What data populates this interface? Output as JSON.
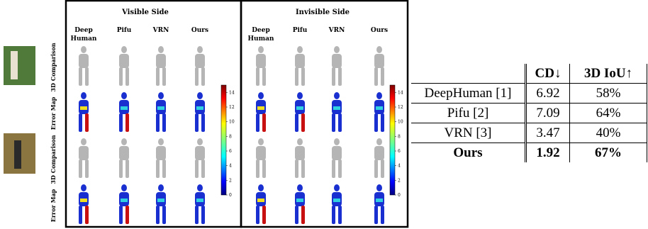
{
  "figure": {
    "panels": [
      {
        "title": "Visible Side",
        "columns": [
          "Deep Human",
          "Pifu",
          "VRN",
          "Ours"
        ]
      },
      {
        "title": "Invisible Side",
        "columns": [
          "Deep Human",
          "Pifu",
          "VRN",
          "Ours"
        ]
      }
    ],
    "row_labels": [
      "3D Comparison",
      "Error Map",
      "3D Comparison",
      "Error Map"
    ],
    "colorbar_ticks": [
      0,
      2,
      4,
      6,
      8,
      10,
      12,
      14
    ]
  },
  "table": {
    "header": [
      "CD↓",
      "3D IoU↑"
    ],
    "rows": [
      [
        "DeepHuman [1]",
        "6.92",
        "58%"
      ],
      [
        "Pifu [2]",
        "7.09",
        "64%"
      ],
      [
        "VRN [3]",
        "3.47",
        "40%"
      ],
      [
        "Ours",
        "1.92",
        "67%"
      ]
    ]
  }
}
